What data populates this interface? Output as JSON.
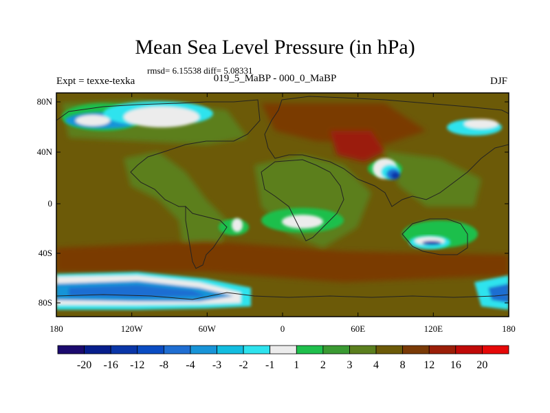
{
  "title": "Mean Sea Level Pressure (in hPa)",
  "stats": "rmsd= 6.15538 diff= 5.08331",
  "expt": "Expt = texxe-texka",
  "comparison": "019_5_MaBP - 000_0_MaBP",
  "season": "DJF",
  "lat_ticks": [
    "80N",
    "40N",
    "0",
    "40S",
    "80S"
  ],
  "lon_ticks": [
    "180",
    "120W",
    "60W",
    "0",
    "60E",
    "120E",
    "180"
  ],
  "colorbar": {
    "labels": [
      "-20",
      "-16",
      "-12",
      "-8",
      "-4",
      "-3",
      "-2",
      "-1",
      "1",
      "2",
      "3",
      "4",
      "8",
      "12",
      "16",
      "20"
    ],
    "colors": [
      "#1b0a6e",
      "#071e8c",
      "#0a36a8",
      "#0a4cc3",
      "#1f6ed2",
      "#1894d8",
      "#12bde0",
      "#2ee3ee",
      "#ececec",
      "#1fbf4c",
      "#3a9a32",
      "#5b7f1e",
      "#6c5a08",
      "#7a3a06",
      "#9b1e08",
      "#c00a08",
      "#e60808"
    ]
  },
  "map_colors": {
    "base": "#6c5a08",
    "land_green": "#5b7f1e",
    "bright_green": "#1fbf4c",
    "light_brown": "#7a3a06",
    "dark_red": "#9b1e08",
    "white": "#ececec",
    "cyan": "#2ee3ee",
    "light_blue": "#1894d8",
    "blue": "#1f6ed2",
    "dark_blue": "#0a36a8",
    "coast": "#222222"
  }
}
